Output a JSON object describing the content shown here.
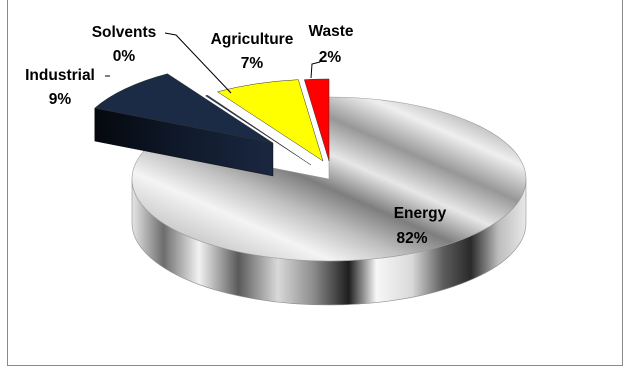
{
  "chart_data": {
    "type": "pie",
    "style": "3d-exploded",
    "title": "",
    "slices": [
      {
        "category": "Energy",
        "value": 82,
        "value_label": "82%",
        "color": "#b5b5b5",
        "exploded": false
      },
      {
        "category": "Industrial",
        "value": 9,
        "value_label": "9%",
        "color": "#1c2b45",
        "exploded": true
      },
      {
        "category": "Solvents",
        "value": 0,
        "value_label": "0%",
        "color": "#2a3a55",
        "exploded": true
      },
      {
        "category": "Agriculture",
        "value": 7,
        "value_label": "7%",
        "color": "#ffff00",
        "exploded": true
      },
      {
        "category": "Waste",
        "value": 2,
        "value_label": "2%",
        "color": "#ff0000",
        "exploded": true
      }
    ]
  }
}
